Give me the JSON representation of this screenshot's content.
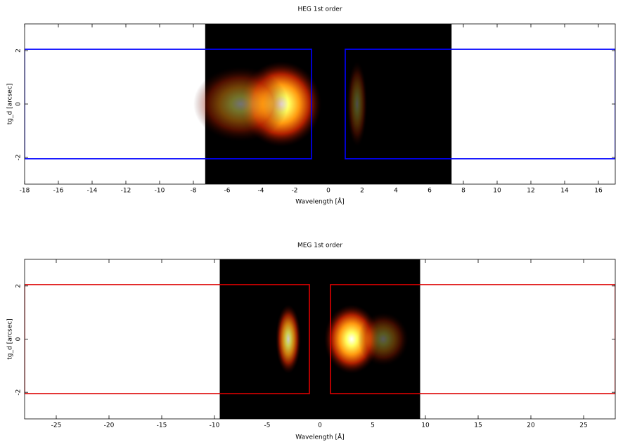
{
  "chart_data": [
    {
      "type": "heatmap",
      "title": "HEG 1st order",
      "xlabel": "Wavelength [Å]",
      "ylabel": "tg_d [arcsec]",
      "xlim": [
        -18,
        17
      ],
      "ylim": [
        -3,
        3
      ],
      "xticks": [
        -18,
        -16,
        -14,
        -12,
        -10,
        -8,
        -6,
        -4,
        -2,
        0,
        2,
        4,
        6,
        8,
        10,
        12,
        14,
        16
      ],
      "yticks": [
        -2,
        0,
        2
      ],
      "image_x": [
        -7.3,
        7.3
      ],
      "blobs": [
        {
          "x": -2.8,
          "y": 0,
          "sx": 1.2,
          "sy": 0.8,
          "peak": 1
        },
        {
          "x": -5.2,
          "y": 0,
          "sx": 1.4,
          "sy": 0.7,
          "peak": 0.45
        },
        {
          "x": 1.7,
          "y": 0,
          "sx": 0.3,
          "sy": 0.8,
          "peak": 0.3
        }
      ],
      "region_color": "#0000ff",
      "regions": [
        [
          -18,
          -1,
          -2.05,
          2.05
        ],
        [
          1,
          17,
          -2.05,
          2.05
        ]
      ]
    },
    {
      "type": "heatmap",
      "title": "MEG 1st order",
      "xlabel": "Wavelength [Å]",
      "ylabel": "tg_d [arcsec]",
      "xlim": [
        -28,
        28
      ],
      "ylim": [
        -3,
        3
      ],
      "xticks": [
        -25,
        -20,
        -15,
        -10,
        -5,
        0,
        5,
        10,
        15,
        20,
        25
      ],
      "yticks": [
        -2,
        0,
        2
      ],
      "image_x": [
        -9.5,
        9.5
      ],
      "blobs": [
        {
          "x": -3,
          "y": 0,
          "sx": 0.6,
          "sy": 0.65,
          "peak": 0.8
        },
        {
          "x": 3,
          "y": 0,
          "sx": 1.3,
          "sy": 0.65,
          "peak": 1
        },
        {
          "x": 6,
          "y": 0,
          "sx": 1.2,
          "sy": 0.5,
          "peak": 0.35
        }
      ],
      "region_color": "#dd0000",
      "regions": [
        [
          -28,
          -1,
          -2.05,
          2.05
        ],
        [
          1,
          28,
          -2.05,
          2.05
        ]
      ]
    }
  ]
}
